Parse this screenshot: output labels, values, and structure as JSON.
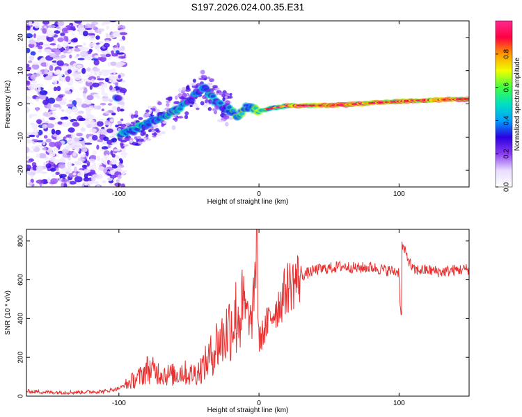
{
  "figure": {
    "title": "S197.2026.024.00.35.E31"
  },
  "chart_data": [
    {
      "type": "heatmap",
      "title": "",
      "xlabel": "Height of straight line (km)",
      "ylabel": "Frequency (Hz)",
      "xlim": [
        -166,
        150
      ],
      "ylim": [
        -25,
        25
      ],
      "x_ticks": [
        -100,
        0,
        100
      ],
      "y_ticks": [
        -20,
        -10,
        0,
        10,
        20
      ],
      "grid": false,
      "colorbar": {
        "label": "Normalized spectral amplitude",
        "range": [
          0,
          1
        ],
        "ticks": [
          0.0,
          0.2,
          0.4,
          0.6,
          0.8
        ],
        "tick_labels": [
          "0.0",
          "0.2",
          "0.4",
          "0.6",
          "0.8"
        ],
        "colormap": [
          "#ffffff",
          "#e8dcff",
          "#8a3cf0",
          "#2a00e0",
          "#00a0ff",
          "#00e0c0",
          "#40ff40",
          "#f0ff00",
          "#ff9a00",
          "#ff0040",
          "#ff2a90"
        ]
      },
      "ridge": {
        "description_points": [
          {
            "x": -100,
            "y": -9
          },
          {
            "x": -90,
            "y": -8
          },
          {
            "x": -80,
            "y": -6
          },
          {
            "x": -70,
            "y": -4
          },
          {
            "x": -60,
            "y": -2
          },
          {
            "x": -50,
            "y": 1
          },
          {
            "x": -40,
            "y": 5
          },
          {
            "x": -35,
            "y": 3
          },
          {
            "x": -30,
            "y": 0
          },
          {
            "x": -20,
            "y": -2
          },
          {
            "x": -15,
            "y": -4
          },
          {
            "x": -10,
            "y": -1
          },
          {
            "x": 0,
            "y": -2
          },
          {
            "x": 20,
            "y": -0.5
          },
          {
            "x": 50,
            "y": -0.5
          },
          {
            "x": 70,
            "y": 0
          },
          {
            "x": 90,
            "y": 0.5
          },
          {
            "x": 110,
            "y": 1
          },
          {
            "x": 150,
            "y": 1.5
          }
        ]
      }
    },
    {
      "type": "line",
      "title": "",
      "xlabel": "Height of straight line (km)",
      "ylabel": "SNR (10 * v/v)",
      "xlim": [
        -166,
        150
      ],
      "ylim": [
        0,
        860
      ],
      "x_ticks": [
        -100,
        0,
        100
      ],
      "y_ticks": [
        0,
        200,
        400,
        600,
        800
      ],
      "grid": false,
      "color": "#e83030",
      "series": [
        {
          "name": "SNR",
          "x": [
            -166,
            -150,
            -130,
            -110,
            -100,
            -90,
            -85,
            -80,
            -75,
            -70,
            -65,
            -60,
            -55,
            -50,
            -45,
            -40,
            -35,
            -30,
            -25,
            -20,
            -15,
            -10,
            -5,
            -2,
            0,
            5,
            10,
            15,
            20,
            30,
            40,
            50,
            60,
            70,
            80,
            90,
            100,
            101,
            102,
            110,
            120,
            130,
            140,
            150
          ],
          "values": [
            25,
            20,
            20,
            25,
            40,
            80,
            100,
            140,
            130,
            120,
            110,
            110,
            130,
            110,
            120,
            150,
            200,
            270,
            300,
            380,
            420,
            440,
            380,
            700,
            280,
            360,
            430,
            480,
            560,
            620,
            650,
            660,
            670,
            660,
            665,
            650,
            640,
            420,
            780,
            650,
            650,
            640,
            650,
            655
          ]
        }
      ]
    }
  ]
}
